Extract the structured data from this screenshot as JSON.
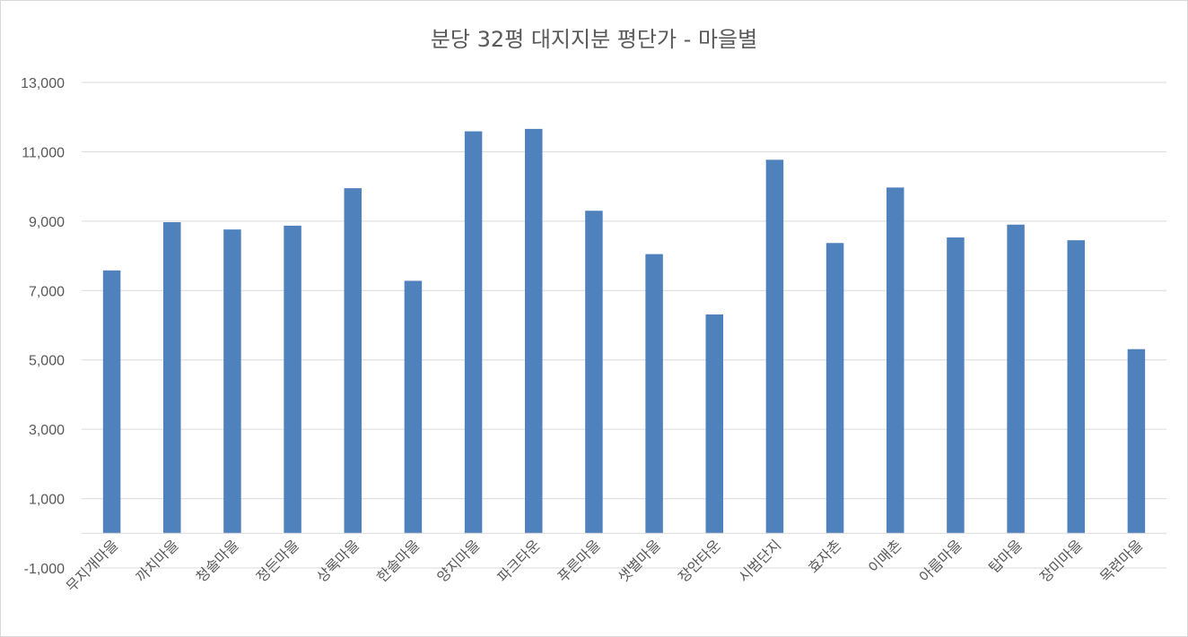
{
  "chart_data": {
    "type": "bar",
    "title": "분당 32평 대지지분 평단가  - 마을별",
    "xlabel": "",
    "ylabel": "",
    "ylim": [
      -1000,
      13000
    ],
    "yticks": [
      -1000,
      1000,
      3000,
      5000,
      7000,
      9000,
      11000,
      13000
    ],
    "ytick_labels": [
      "-1,000",
      "1,000",
      "3,000",
      "5,000",
      "7,000",
      "9,000",
      "11,000",
      "13,000"
    ],
    "grid": true,
    "legend": "none",
    "bar_color": "#4f81bd",
    "categories": [
      "무지개마을",
      "까치마을",
      "청솔마을",
      "정든마을",
      "상록마을",
      "한솔마을",
      "양지마을",
      "파크타운",
      "푸른마을",
      "샛별마을",
      "장안타운",
      "시범단지",
      "효자촌",
      "이매촌",
      "아름마을",
      "탑마을",
      "장미마을",
      "목련마을"
    ],
    "values": [
      7580,
      8970,
      8760,
      8870,
      9950,
      7280,
      11590,
      11660,
      9300,
      8050,
      6310,
      10770,
      8370,
      9970,
      8530,
      8900,
      8450,
      5310
    ]
  }
}
